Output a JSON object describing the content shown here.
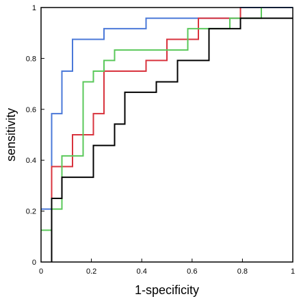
{
  "chart_data": {
    "type": "line",
    "title": "",
    "xlabel": "1-specificity",
    "ylabel": "sensitivity",
    "xlim": [
      0,
      1
    ],
    "ylim": [
      0,
      1
    ],
    "grid": false,
    "x_ticks": [
      "0",
      "0.2",
      "0.4",
      "0.6",
      "0.8",
      "1"
    ],
    "y_ticks": [
      "0",
      "0.2",
      "0.4",
      "0.6",
      "0.8",
      "1"
    ],
    "step": true,
    "series": [
      {
        "color": "#4a78d8",
        "x": [
          0,
          0.042,
          0.042,
          0.083,
          0.083,
          0.125,
          0.125,
          0.25,
          0.25,
          0.417,
          0.417,
          0.792,
          0.792,
          1
        ],
        "y": [
          0.208,
          0.208,
          0.583,
          0.583,
          0.75,
          0.75,
          0.875,
          0.875,
          0.917,
          0.917,
          0.958,
          0.958,
          1,
          1
        ]
      },
      {
        "color": "#d8323c",
        "x": [
          0,
          0.042,
          0.042,
          0.125,
          0.125,
          0.208,
          0.208,
          0.25,
          0.25,
          0.417,
          0.417,
          0.5,
          0.5,
          0.625,
          0.625,
          0.792,
          0.792
        ],
        "y": [
          0.125,
          0.125,
          0.375,
          0.375,
          0.5,
          0.5,
          0.583,
          0.583,
          0.75,
          0.75,
          0.792,
          0.792,
          0.875,
          0.875,
          0.958,
          0.958,
          1
        ]
      },
      {
        "color": "#5ac85a",
        "x": [
          0,
          0.042,
          0.042,
          0.083,
          0.083,
          0.167,
          0.167,
          0.208,
          0.208,
          0.25,
          0.25,
          0.292,
          0.292,
          0.583,
          0.583,
          0.708,
          0.708,
          0.75,
          0.75,
          0.875,
          0.875
        ],
        "y": [
          0.125,
          0.125,
          0.208,
          0.208,
          0.417,
          0.417,
          0.708,
          0.708,
          0.75,
          0.75,
          0.792,
          0.792,
          0.833,
          0.833,
          0.917,
          0.917,
          0.917,
          0.917,
          0.958,
          0.958,
          1
        ]
      },
      {
        "color": "#000000",
        "x": [
          0.042,
          0.042,
          0.083,
          0.083,
          0.208,
          0.208,
          0.292,
          0.292,
          0.333,
          0.333,
          0.458,
          0.458,
          0.542,
          0.542,
          0.667,
          0.667,
          0.792,
          0.792,
          1
        ],
        "y": [
          0,
          0.25,
          0.25,
          0.333,
          0.333,
          0.458,
          0.458,
          0.542,
          0.542,
          0.667,
          0.667,
          0.708,
          0.708,
          0.792,
          0.792,
          0.917,
          0.917,
          0.958,
          0.958
        ]
      }
    ]
  }
}
